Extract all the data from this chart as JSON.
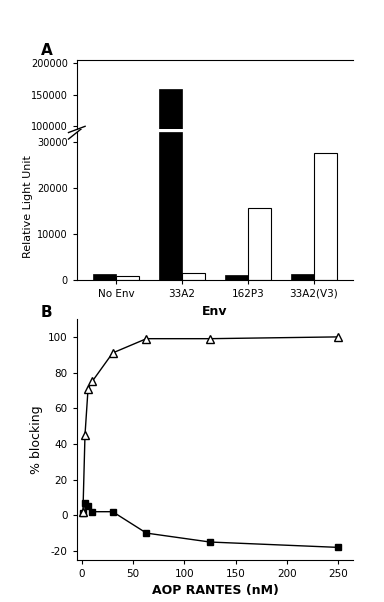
{
  "panel_a": {
    "title": "A",
    "categories": [
      "No Env",
      "33A2",
      "162P3",
      "33A2(V3)"
    ],
    "bar1_values": [
      1200,
      160000,
      1000,
      1200
    ],
    "bar2_values": [
      800,
      1500,
      15500,
      27500
    ],
    "bar1_color": "#000000",
    "bar2_color": "#ffffff",
    "bar2_edgecolor": "#000000",
    "xlabel": "Env",
    "ylabel": "Relative Light Unit",
    "yticks_upper": [
      100000,
      150000,
      200000
    ],
    "yticks_lower": [
      0,
      10000,
      20000,
      30000
    ],
    "lower_ylim": [
      0,
      32000
    ],
    "upper_ylim": [
      95000,
      205000
    ],
    "bar_width": 0.35
  },
  "panel_b": {
    "title": "B",
    "xlabel": "AOP RANTES (nM)",
    "ylabel": "% blocking",
    "line1_x": [
      1,
      3,
      6,
      10,
      30,
      63,
      125,
      250
    ],
    "line1_y": [
      1,
      7,
      5,
      2,
      2,
      -10,
      -15,
      -18
    ],
    "line2_x": [
      1,
      3,
      6,
      10,
      30,
      63,
      125,
      250
    ],
    "line2_y": [
      2,
      45,
      71,
      75,
      91,
      99,
      99,
      100
    ],
    "line1_color": "#000000",
    "line2_color": "#000000",
    "ylim": [
      -25,
      110
    ],
    "yticks": [
      -20,
      0,
      20,
      40,
      60,
      80,
      100
    ],
    "xlim": [
      -5,
      265
    ],
    "xticks": [
      0,
      50,
      100,
      150,
      200,
      250
    ]
  }
}
